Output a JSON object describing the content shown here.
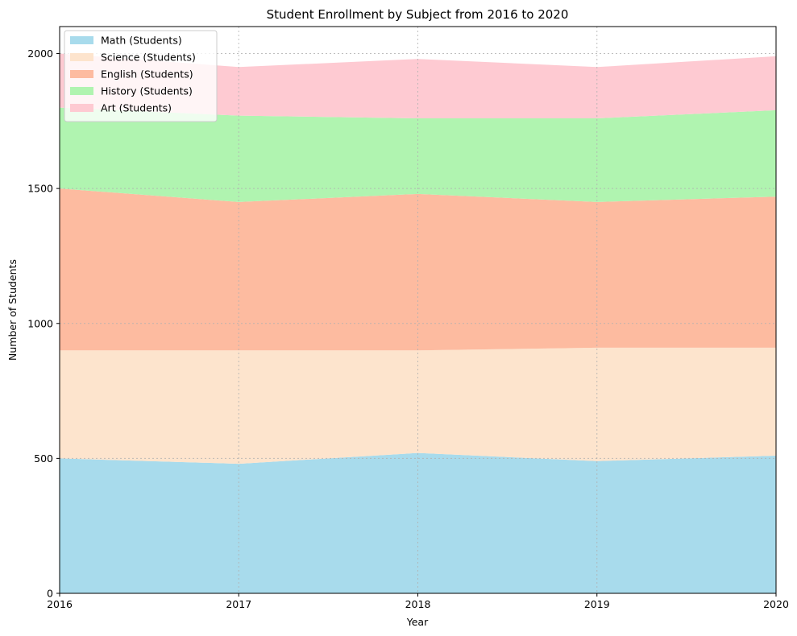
{
  "chart_data": {
    "type": "area",
    "stacked": true,
    "title": "Student Enrollment by Subject from 2016 to 2020",
    "xlabel": "Year",
    "ylabel": "Number of Students",
    "categories": [
      "2016",
      "2017",
      "2018",
      "2019",
      "2020"
    ],
    "x": [
      2016,
      2017,
      2018,
      2019,
      2020
    ],
    "xlim": [
      2016,
      2020
    ],
    "ylim": [
      0,
      2100
    ],
    "yticks": [
      0,
      500,
      1000,
      1500,
      2000
    ],
    "grid": true,
    "legend_position": "upper-left",
    "series": [
      {
        "name": "Math (Students)",
        "values": [
          500,
          480,
          520,
          490,
          510
        ],
        "color": "#a8dbec"
      },
      {
        "name": "Science (Students)",
        "values": [
          400,
          420,
          380,
          420,
          400
        ],
        "color": "#fde4cd"
      },
      {
        "name": "English (Students)",
        "values": [
          600,
          550,
          580,
          540,
          560
        ],
        "color": "#fdbba0"
      },
      {
        "name": "History (Students)",
        "values": [
          300,
          320,
          280,
          310,
          320
        ],
        "color": "#b0f4b0"
      },
      {
        "name": "Art (Students)",
        "values": [
          200,
          180,
          220,
          190,
          200
        ],
        "color": "#fecad2"
      }
    ]
  }
}
